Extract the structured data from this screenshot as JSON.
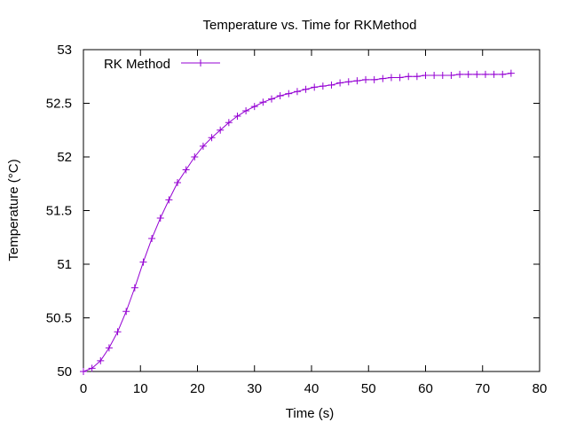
{
  "chart_data": {
    "type": "line",
    "title": "Temperature vs. Time for RKMethod",
    "xlabel": "Time (s)",
    "ylabel": "Temperature (°C)",
    "xlim": [
      0,
      80
    ],
    "ylim": [
      50,
      53
    ],
    "xticks": [
      0,
      10,
      20,
      30,
      40,
      50,
      60,
      70,
      80
    ],
    "xtick_labels": [
      "0",
      "10",
      "20",
      "30",
      "40",
      "50",
      "60",
      "70",
      "80"
    ],
    "yticks": [
      50,
      50.5,
      51,
      51.5,
      52,
      52.5,
      53
    ],
    "ytick_labels": [
      "50",
      "50.5",
      "51",
      "51.5",
      "52",
      "52.5",
      "53"
    ],
    "grid": false,
    "legend_position": "top-left",
    "series": [
      {
        "name": "RK Method",
        "color": "#9400d3",
        "marker": "plus",
        "x": [
          0,
          1.5,
          3,
          4.5,
          6,
          7.5,
          9,
          10.5,
          12,
          13.5,
          15,
          16.5,
          18,
          19.5,
          21,
          22.5,
          24,
          25.5,
          27,
          28.5,
          30,
          31.5,
          33,
          34.5,
          36,
          37.5,
          39,
          40.5,
          42,
          43.5,
          45,
          46.5,
          48,
          49.5,
          51,
          52.5,
          54,
          55.5,
          57,
          58.5,
          60,
          61.5,
          63,
          64.5,
          66,
          67.5,
          69,
          70.5,
          72,
          73.5,
          75
        ],
        "y": [
          50.0,
          50.03,
          50.1,
          50.22,
          50.37,
          50.56,
          50.78,
          51.02,
          51.24,
          51.43,
          51.6,
          51.76,
          51.88,
          52.0,
          52.1,
          52.18,
          52.25,
          52.32,
          52.38,
          52.43,
          52.47,
          52.51,
          52.54,
          52.57,
          52.59,
          52.61,
          52.63,
          52.65,
          52.66,
          52.67,
          52.69,
          52.7,
          52.71,
          52.72,
          52.72,
          52.73,
          52.74,
          52.74,
          52.75,
          52.75,
          52.76,
          52.76,
          52.76,
          52.76,
          52.77,
          52.77,
          52.77,
          52.77,
          52.77,
          52.77,
          52.78
        ]
      }
    ]
  }
}
